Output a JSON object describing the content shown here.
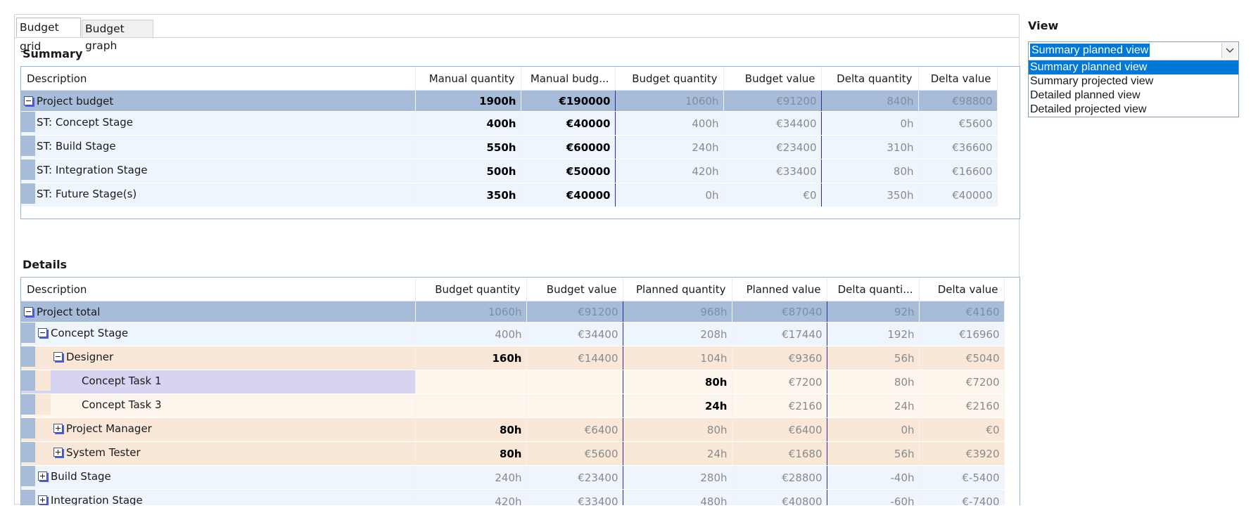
{
  "tabs": [
    {
      "label": "Budget grid",
      "active": true
    },
    {
      "label": "Budget graph",
      "active": false
    }
  ],
  "summary": {
    "title": "Summary",
    "columns": [
      "Description",
      "Manual quantity",
      "Manual budg...",
      "Budget quantity",
      "Budget value",
      "Delta quantity",
      "Delta value"
    ],
    "rows": [
      {
        "label": "Project budget",
        "kind": "root",
        "expander": "minus",
        "values": [
          "1900h",
          "€190000",
          "1060h",
          "€91200",
          "840h",
          "€98800"
        ]
      },
      {
        "label": "ST: Concept  Stage",
        "kind": "stage",
        "expander": "",
        "values": [
          "400h",
          "€40000",
          "400h",
          "€34400",
          "0h",
          "€5600"
        ]
      },
      {
        "label": "ST: Build Stage",
        "kind": "stage",
        "expander": "",
        "values": [
          "550h",
          "€60000",
          "240h",
          "€23400",
          "310h",
          "€36600"
        ]
      },
      {
        "label": "ST: Integration Stage",
        "kind": "stage",
        "expander": "",
        "values": [
          "500h",
          "€50000",
          "420h",
          "€33400",
          "80h",
          "€16600"
        ]
      },
      {
        "label": "ST: Future Stage(s)",
        "kind": "stage",
        "expander": "",
        "values": [
          "350h",
          "€40000",
          "0h",
          "€0",
          "350h",
          "€40000"
        ]
      }
    ]
  },
  "details": {
    "title": "Details",
    "columns": [
      "Description",
      "Budget quantity",
      "Budget value",
      "Planned quantity",
      "Planned value",
      "Delta quanti...",
      "Delta value"
    ],
    "rows": [
      {
        "label": "Project total",
        "kind": "root",
        "level": 0,
        "expander": "minus",
        "values": [
          "1060h",
          "€91200",
          "968h",
          "€87040",
          "92h",
          "€4160"
        ]
      },
      {
        "label": "Concept  Stage",
        "kind": "stage",
        "level": 1,
        "expander": "minus",
        "values": [
          "400h",
          "€34400",
          "208h",
          "€17440",
          "192h",
          "€16960"
        ]
      },
      {
        "label": "Designer",
        "kind": "role",
        "level": 2,
        "expander": "minus",
        "values": [
          "160h",
          "€14400",
          "104h",
          "€9360",
          "56h",
          "€5040"
        ]
      },
      {
        "label": "Concept Task 1",
        "kind": "task",
        "level": 3,
        "expander": "",
        "selected": true,
        "values": [
          "",
          "",
          "80h",
          "€7200",
          "80h",
          "€7200"
        ]
      },
      {
        "label": "Concept Task 3",
        "kind": "task",
        "level": 3,
        "expander": "",
        "values": [
          "",
          "",
          "24h",
          "€2160",
          "24h",
          "€2160"
        ]
      },
      {
        "label": "Project Manager",
        "kind": "role",
        "level": 2,
        "expander": "plus",
        "values": [
          "80h",
          "€6400",
          "80h",
          "€6400",
          "0h",
          "€0"
        ]
      },
      {
        "label": "System Tester",
        "kind": "role",
        "level": 2,
        "expander": "plus",
        "values": [
          "80h",
          "€5600",
          "24h",
          "€1680",
          "56h",
          "€3920"
        ]
      },
      {
        "label": "Build Stage",
        "kind": "stage",
        "level": 1,
        "expander": "plus",
        "values": [
          "240h",
          "€23400",
          "280h",
          "€28800",
          "-40h",
          "€-5400"
        ]
      },
      {
        "label": "Integration Stage",
        "kind": "stage",
        "level": 1,
        "expander": "plus",
        "values": [
          "420h",
          "€33400",
          "480h",
          "€40800",
          "-60h",
          "€-7400"
        ]
      }
    ]
  },
  "view": {
    "label": "View",
    "selected": "Summary planned view",
    "options": [
      "Summary planned view",
      "Summary projected view",
      "Detailed planned view",
      "Detailed projected view"
    ]
  }
}
